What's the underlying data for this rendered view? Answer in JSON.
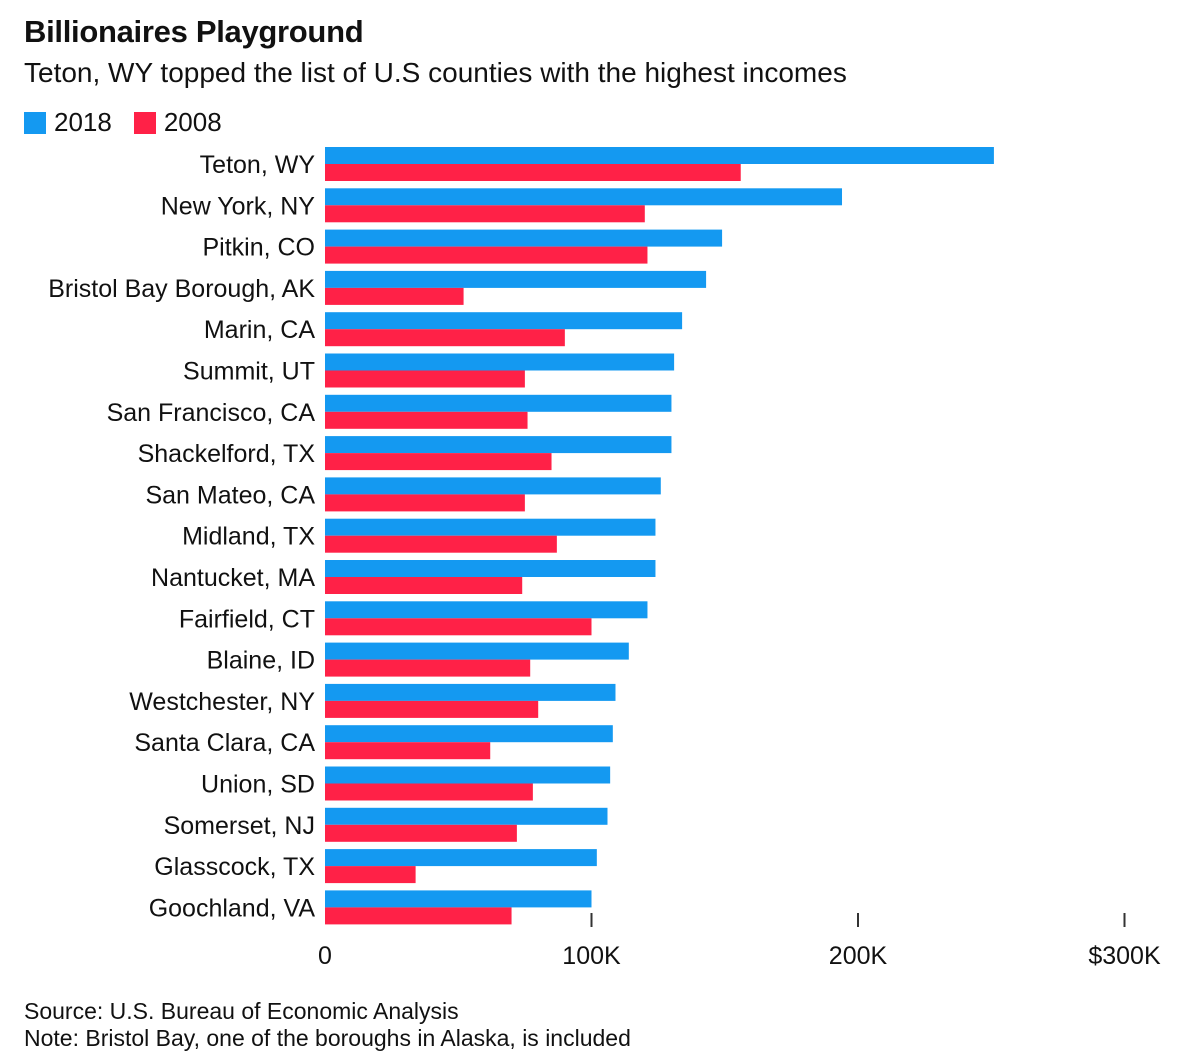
{
  "colors": {
    "series_2018": "#1499f1",
    "series_2008": "#ff2147",
    "axis": "#333333"
  },
  "header": {
    "title": "Billionaires Playground",
    "subtitle": "Teton, WY topped the list of U.S counties with the highest incomes"
  },
  "legend": {
    "items": [
      {
        "label": "2018",
        "color": "#1499f1"
      },
      {
        "label": "2008",
        "color": "#ff2147"
      }
    ]
  },
  "footer": {
    "source": "Source: U.S. Bureau of Economic Analysis",
    "note": "Note: Bristol Bay, one of the boroughs in Alaska, is included"
  },
  "chart_data": {
    "type": "bar",
    "orientation": "horizontal",
    "categories": [
      "Teton, WY",
      "New York, NY",
      "Pitkin, CO",
      "Bristol Bay Borough, AK",
      "Marin, CA",
      "Summit, UT",
      "San Francisco, CA",
      "Shackelford, TX",
      "San Mateo, CA",
      "Midland, TX",
      "Nantucket, MA",
      "Fairfield, CT",
      "Blaine, ID",
      "Westchester, NY",
      "Santa Clara, CA",
      "Union, SD",
      "Somerset, NJ",
      "Glasscock, TX",
      "Goochland, VA"
    ],
    "series": [
      {
        "name": "2018",
        "values": [
          251,
          194,
          149,
          143,
          134,
          131,
          130,
          130,
          126,
          124,
          124,
          121,
          114,
          109,
          108,
          107,
          106,
          102,
          100
        ]
      },
      {
        "name": "2008",
        "values": [
          156,
          120,
          121,
          52,
          90,
          75,
          76,
          85,
          75,
          87,
          74,
          100,
          77,
          80,
          62,
          78,
          72,
          34,
          70
        ]
      }
    ],
    "xlim": [
      0,
      300
    ],
    "ticks": [
      {
        "value": 0,
        "label": "0"
      },
      {
        "value": 100,
        "label": "100K"
      },
      {
        "value": 200,
        "label": "200K"
      },
      {
        "value": 300,
        "label": "$300K"
      }
    ],
    "unit": "thousand USD",
    "grid": false,
    "legend_position": "top-left"
  }
}
